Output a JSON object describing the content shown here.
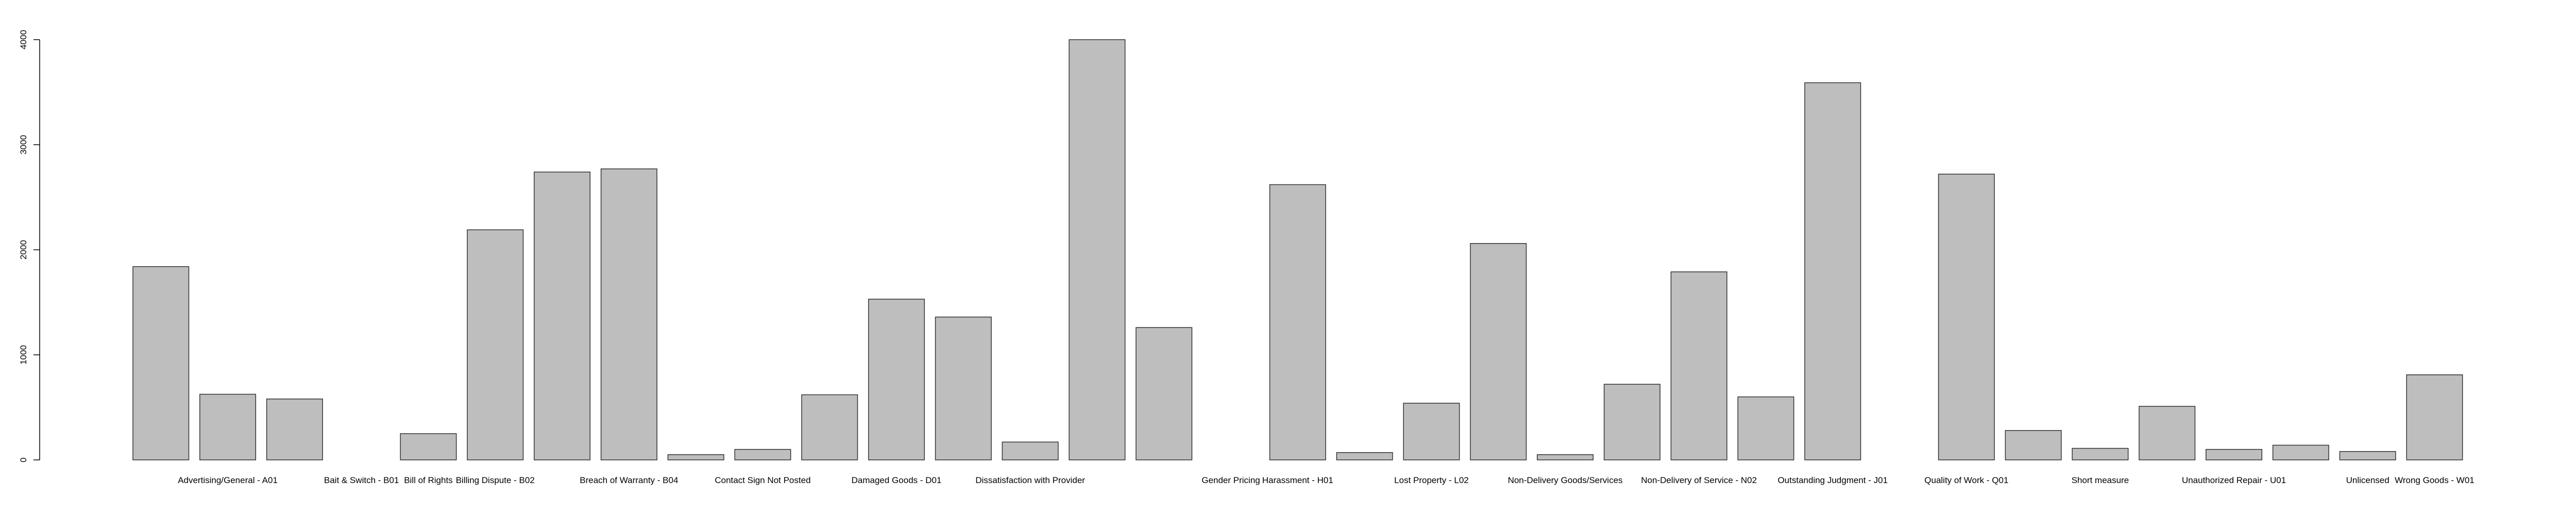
{
  "chart_data": {
    "type": "bar",
    "categories": [
      null,
      "Advertising/General - A01",
      null,
      "Bait & Switch - B01",
      "Bill of Rights",
      "Billing Dispute - B02",
      null,
      "Breach of Warranty - B04",
      null,
      "Contact Sign Not Posted",
      null,
      "Damaged Goods - D01",
      null,
      "Dissatisfaction with Provider",
      null,
      null,
      "Gender Pricing",
      "Harassment - H01",
      null,
      "Lost Property - L02",
      null,
      "Non-Delivery Goods/Services",
      null,
      "Non-Delivery of Service - N02",
      null,
      "Outstanding Judgment - J01",
      null,
      "Quality of Work - Q01",
      null,
      "Short measure",
      null,
      "Unauthorized Repair - U01",
      null,
      "Unlicensed",
      "Wrong Goods - W01"
    ],
    "values": [
      1840,
      625,
      580,
      0,
      250,
      2190,
      2740,
      2770,
      50,
      100,
      620,
      1530,
      1360,
      170,
      4000,
      1260,
      0,
      2620,
      70,
      540,
      2060,
      50,
      720,
      1790,
      600,
      3590,
      0,
      2720,
      280,
      110,
      510,
      100,
      140,
      80,
      810
    ],
    "color": "#bebebe",
    "ylim": [
      0,
      4000
    ],
    "yticks": [
      0,
      1000,
      2000,
      3000,
      4000
    ],
    "grid": false
  }
}
